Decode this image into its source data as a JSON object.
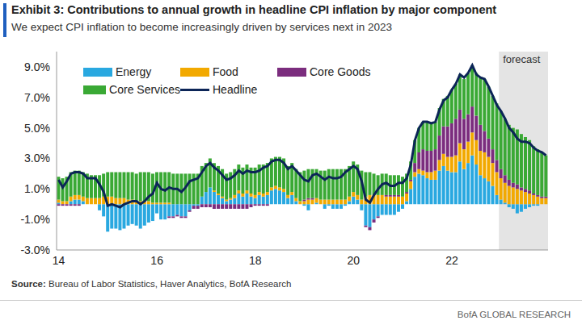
{
  "chart_data": {
    "type": "bar",
    "stacked": true,
    "title": "Exhibit 3: Contributions to annual growth in headline CPI inflation by major component",
    "subtitle": "We expect CPI inflation to become increasingly driven by services next in 2023",
    "source": "Source: Bureau of Labor Statistics, Haver Analytics, BofA Research",
    "footer": "BofA GLOBAL RESEARCH",
    "categories": [
      "14",
      null,
      null,
      null,
      null,
      null,
      null,
      null,
      null,
      null,
      null,
      null,
      null,
      null,
      null,
      null,
      null,
      null,
      null,
      null,
      null,
      null,
      null,
      null,
      "16",
      null,
      null,
      null,
      null,
      null,
      null,
      null,
      null,
      null,
      null,
      null,
      null,
      null,
      null,
      null,
      null,
      null,
      null,
      null,
      null,
      null,
      null,
      null,
      "18",
      null,
      null,
      null,
      null,
      null,
      null,
      null,
      null,
      null,
      null,
      null,
      null,
      null,
      null,
      null,
      null,
      null,
      null,
      null,
      null,
      null,
      null,
      null,
      "20",
      null,
      null,
      null,
      null,
      null,
      null,
      null,
      null,
      null,
      null,
      null,
      null,
      null,
      null,
      null,
      null,
      null,
      null,
      null,
      null,
      null,
      null,
      null,
      "22",
      null,
      null,
      null,
      null,
      null,
      null,
      null,
      null,
      null,
      null,
      null,
      null,
      null,
      null,
      null,
      null,
      null,
      null,
      null,
      null,
      null,
      null,
      null
    ],
    "series": [
      {
        "name": "Energy",
        "color": "#29a8e0",
        "values": [
          0.1,
          0.0,
          0.0,
          0.2,
          0.3,
          0.3,
          0.2,
          0.0,
          0.0,
          0.0,
          -0.4,
          -0.8,
          -1.8,
          -1.6,
          -1.6,
          -1.7,
          -1.6,
          -1.4,
          -1.3,
          -1.4,
          -1.6,
          -1.4,
          -1.2,
          -1.1,
          -0.6,
          -1.0,
          -1.0,
          -0.8,
          -0.8,
          -0.7,
          -0.8,
          -0.8,
          -0.4,
          -0.1,
          -0.1,
          0.5,
          0.8,
          1.1,
          0.8,
          0.6,
          0.4,
          0.2,
          0.3,
          0.4,
          0.7,
          0.5,
          0.7,
          0.5,
          0.4,
          0.6,
          0.5,
          0.6,
          0.9,
          1.0,
          0.9,
          0.8,
          0.4,
          0.6,
          0.2,
          0.0,
          -0.1,
          -0.4,
          0.0,
          0.1,
          0.0,
          -0.3,
          -0.1,
          -0.3,
          -0.3,
          -0.3,
          -0.1,
          0.2,
          0.5,
          0.3,
          -0.4,
          -1.4,
          -1.5,
          -1.0,
          -0.8,
          -0.7,
          -0.7,
          -0.7,
          -0.7,
          -0.5,
          -0.3,
          0.2,
          1.0,
          1.8,
          2.0,
          1.9,
          1.7,
          1.6,
          1.6,
          2.2,
          2.5,
          2.2,
          2.1,
          2.1,
          2.8,
          2.3,
          2.7,
          3.2,
          2.6,
          1.9,
          1.7,
          1.5,
          1.2,
          0.6,
          0.3,
          0.1,
          -0.2,
          -0.3,
          -0.6,
          -0.5,
          -0.3,
          -0.2,
          -0.1,
          -0.1,
          0.0,
          0.0
        ]
      },
      {
        "name": "Food",
        "color": "#f2a900",
        "values": [
          0.2,
          0.2,
          0.2,
          0.3,
          0.3,
          0.3,
          0.3,
          0.4,
          0.4,
          0.4,
          0.4,
          0.5,
          0.5,
          0.5,
          0.4,
          0.4,
          0.4,
          0.3,
          0.3,
          0.2,
          0.2,
          0.2,
          0.2,
          0.1,
          0.1,
          0.1,
          0.1,
          0.1,
          0.0,
          0.0,
          0.0,
          0.0,
          0.0,
          0.0,
          0.0,
          0.0,
          0.0,
          0.0,
          0.1,
          0.1,
          0.1,
          0.1,
          0.1,
          0.2,
          0.2,
          0.2,
          0.2,
          0.2,
          0.2,
          0.2,
          0.2,
          0.2,
          0.2,
          0.2,
          0.2,
          0.2,
          0.2,
          0.2,
          0.2,
          0.2,
          0.2,
          0.3,
          0.3,
          0.3,
          0.3,
          0.3,
          0.3,
          0.3,
          0.3,
          0.3,
          0.3,
          0.3,
          0.3,
          0.3,
          0.3,
          0.5,
          0.6,
          0.6,
          0.6,
          0.6,
          0.5,
          0.5,
          0.5,
          0.5,
          0.5,
          0.5,
          0.5,
          0.3,
          0.3,
          0.3,
          0.4,
          0.5,
          0.6,
          0.7,
          0.8,
          0.9,
          1.0,
          1.1,
          1.2,
          1.3,
          1.4,
          1.5,
          1.6,
          1.6,
          1.7,
          1.6,
          1.5,
          1.5,
          1.4,
          1.3,
          1.2,
          1.1,
          1.0,
          0.9,
          0.8,
          0.7,
          0.6,
          0.5,
          0.4,
          0.4
        ]
      },
      {
        "name": "Core Goods",
        "color": "#7b2d7e",
        "values": [
          -0.1,
          -0.1,
          -0.1,
          -0.1,
          -0.1,
          -0.1,
          0.0,
          0.0,
          0.0,
          0.0,
          0.0,
          0.0,
          0.0,
          0.0,
          0.0,
          0.0,
          0.0,
          0.0,
          0.0,
          0.0,
          0.0,
          0.0,
          0.0,
          0.0,
          0.0,
          0.0,
          0.0,
          -0.1,
          -0.1,
          -0.1,
          -0.1,
          -0.1,
          -0.1,
          -0.2,
          -0.2,
          -0.2,
          -0.2,
          -0.2,
          -0.3,
          -0.3,
          -0.3,
          -0.3,
          -0.3,
          -0.3,
          -0.3,
          -0.3,
          -0.3,
          -0.2,
          -0.1,
          -0.1,
          -0.1,
          -0.1,
          0.0,
          0.0,
          0.0,
          0.0,
          0.0,
          0.0,
          0.0,
          0.0,
          0.1,
          0.1,
          0.1,
          0.0,
          0.0,
          0.0,
          0.0,
          0.0,
          0.0,
          0.0,
          0.0,
          0.0,
          0.0,
          0.0,
          0.0,
          -0.1,
          -0.2,
          -0.2,
          -0.1,
          0.0,
          0.1,
          0.1,
          0.1,
          0.1,
          0.0,
          0.1,
          0.1,
          0.6,
          1.1,
          1.4,
          1.4,
          1.4,
          1.4,
          1.6,
          1.8,
          2.0,
          2.2,
          2.4,
          2.2,
          2.0,
          1.8,
          1.7,
          1.6,
          1.7,
          1.4,
          1.2,
          0.9,
          0.8,
          0.6,
          0.5,
          0.4,
          0.3,
          0.3,
          0.2,
          0.2,
          0.2,
          0.1,
          0.1,
          0.1,
          0.1
        ]
      },
      {
        "name": "Core Services",
        "color": "#3aa935",
        "values": [
          1.5,
          1.5,
          1.6,
          1.6,
          1.6,
          1.6,
          1.6,
          1.6,
          1.5,
          1.5,
          1.5,
          1.5,
          1.6,
          1.6,
          1.7,
          1.7,
          1.7,
          1.8,
          1.8,
          1.8,
          1.9,
          1.9,
          1.9,
          1.9,
          2.0,
          2.0,
          2.0,
          2.0,
          2.0,
          2.0,
          2.0,
          2.0,
          2.0,
          2.0,
          2.0,
          2.0,
          1.9,
          1.9,
          1.8,
          1.8,
          1.8,
          1.7,
          1.7,
          1.7,
          1.7,
          1.7,
          1.7,
          1.7,
          1.8,
          1.8,
          1.9,
          1.9,
          1.9,
          1.9,
          2.0,
          2.0,
          1.9,
          1.9,
          1.9,
          1.9,
          1.9,
          1.9,
          1.9,
          1.9,
          1.9,
          1.9,
          2.0,
          2.0,
          2.0,
          2.0,
          2.0,
          2.0,
          2.0,
          2.0,
          1.9,
          1.6,
          1.5,
          1.4,
          1.3,
          1.4,
          1.4,
          1.3,
          1.3,
          1.3,
          1.3,
          1.2,
          1.2,
          1.5,
          1.6,
          1.8,
          1.9,
          1.8,
          1.8,
          1.8,
          1.8,
          2.0,
          2.2,
          2.3,
          2.3,
          2.6,
          2.7,
          2.7,
          2.8,
          3.1,
          3.4,
          3.4,
          3.5,
          3.7,
          3.8,
          3.7,
          3.6,
          3.6,
          3.6,
          3.5,
          3.4,
          3.3,
          3.1,
          3.0,
          2.9,
          2.7
        ]
      },
      {
        "name": "Headline",
        "color": "#0c2557",
        "type": "line",
        "values": [
          1.6,
          1.1,
          1.5,
          2.0,
          2.1,
          2.1,
          2.0,
          1.7,
          1.7,
          1.7,
          1.3,
          0.8,
          -0.1,
          0.0,
          -0.1,
          -0.2,
          0.0,
          0.1,
          0.2,
          0.2,
          0.0,
          0.2,
          0.5,
          0.7,
          1.4,
          1.0,
          0.9,
          1.1,
          1.0,
          1.0,
          0.8,
          1.1,
          1.5,
          1.6,
          1.7,
          2.1,
          2.5,
          2.7,
          2.4,
          2.2,
          1.9,
          1.6,
          1.7,
          1.9,
          2.2,
          2.0,
          2.2,
          2.1,
          2.1,
          2.2,
          2.4,
          2.5,
          2.8,
          2.9,
          2.9,
          2.7,
          2.3,
          2.5,
          2.2,
          1.9,
          1.6,
          1.5,
          1.9,
          2.0,
          1.8,
          1.6,
          1.8,
          1.7,
          1.7,
          1.8,
          2.1,
          2.3,
          2.5,
          2.3,
          1.5,
          0.3,
          0.1,
          0.6,
          1.0,
          1.3,
          1.4,
          1.2,
          1.2,
          1.4,
          1.4,
          1.7,
          2.6,
          4.2,
          5.0,
          5.4,
          5.4,
          5.3,
          5.4,
          6.2,
          6.8,
          7.0,
          7.5,
          7.9,
          8.5,
          8.3,
          8.6,
          9.1,
          8.5,
          8.3,
          8.2,
          7.7,
          7.1,
          6.5,
          6.1,
          5.6,
          5.0,
          4.7,
          4.3,
          4.1,
          4.1,
          4.0,
          3.7,
          3.5,
          3.4,
          3.2
        ]
      }
    ],
    "ylim": [
      -3,
      10
    ],
    "yticks": [
      {
        "value": -3,
        "label": "-3.0%"
      },
      {
        "value": -1,
        "label": "-1.0%"
      },
      {
        "value": 1,
        "label": "1.0%"
      },
      {
        "value": 3,
        "label": "3.0%"
      },
      {
        "value": 5,
        "label": "5.0%"
      },
      {
        "value": 7,
        "label": "7.0%"
      },
      {
        "value": 9,
        "label": "9.0%"
      }
    ],
    "grid": false,
    "legend": "top left",
    "annotations": [
      {
        "text": "forecast",
        "x": [
          108,
          119
        ]
      }
    ]
  }
}
